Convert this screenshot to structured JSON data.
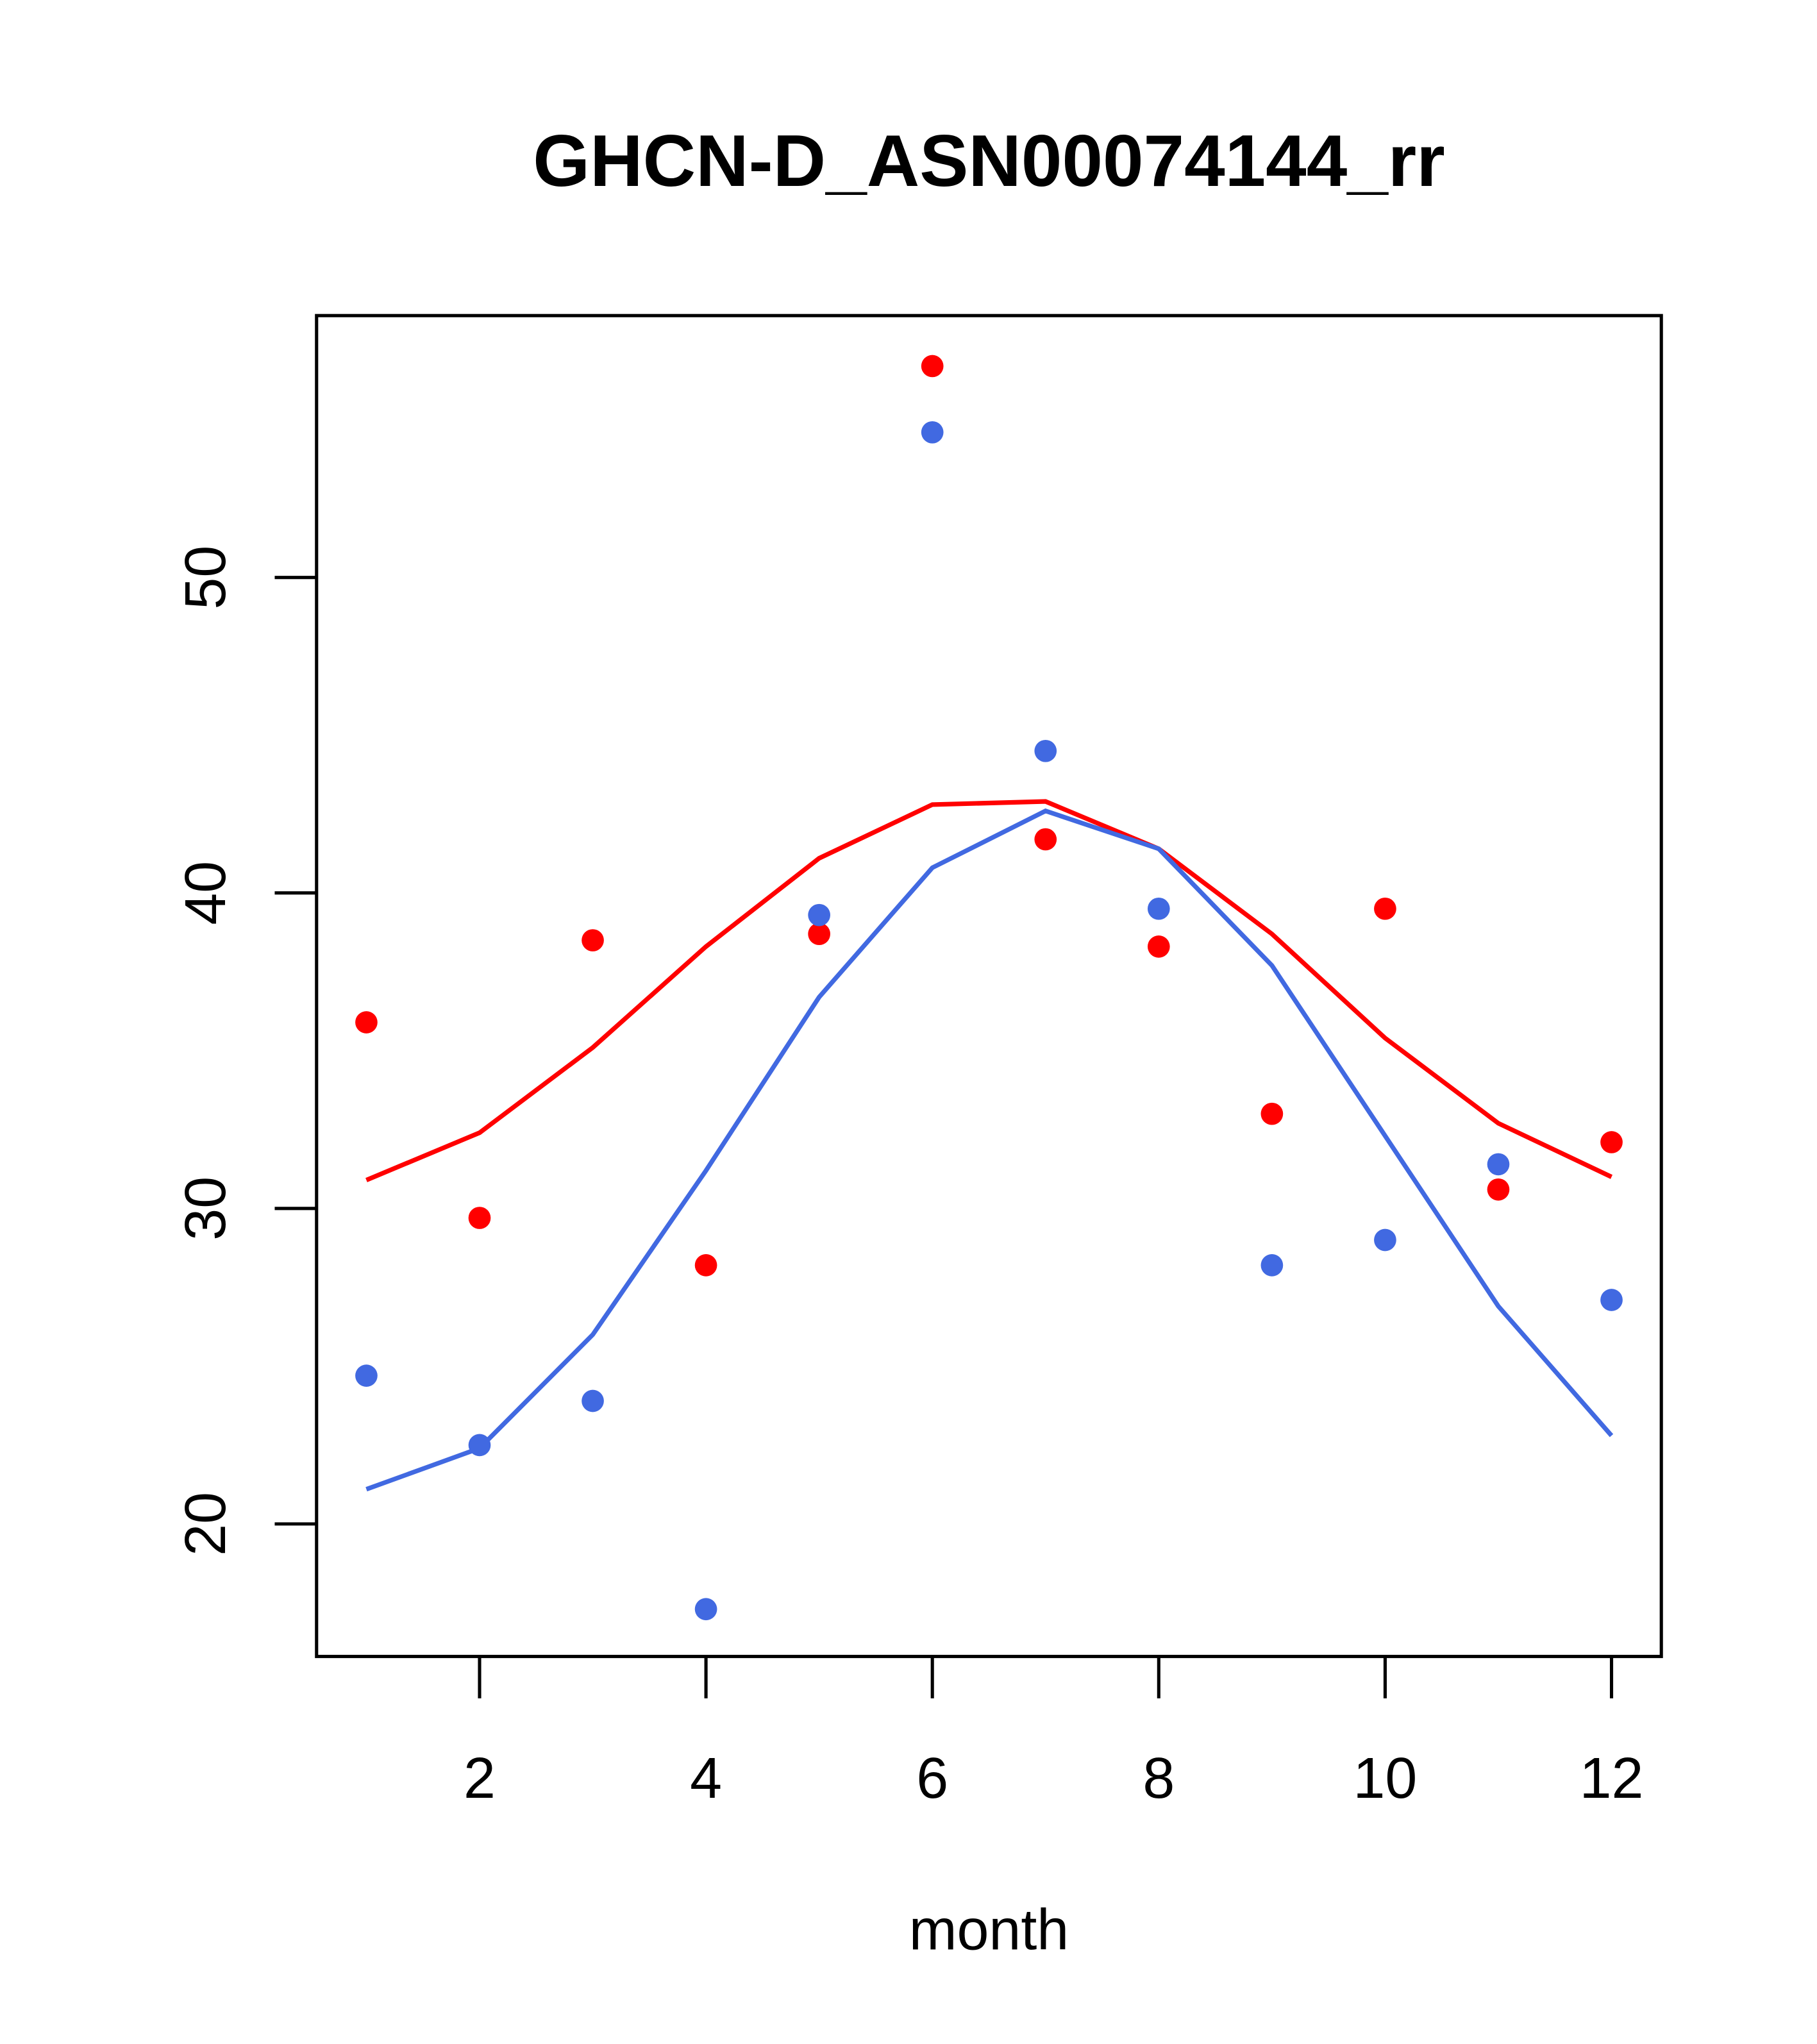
{
  "chart_data": {
    "type": "scatter",
    "title": "GHCN-D_ASN00074144_rr",
    "xlabel": "month",
    "ylabel": "",
    "xlim": [
      0.56,
      12.44
    ],
    "ylim": [
      15.8,
      58.3
    ],
    "xticks": [
      2,
      4,
      6,
      8,
      10,
      12
    ],
    "yticks": [
      20,
      30,
      40,
      50
    ],
    "x": [
      1,
      2,
      3,
      4,
      5,
      6,
      7,
      8,
      9,
      10,
      11,
      12
    ],
    "series": [
      {
        "name": "red points",
        "kind": "points",
        "color": "#ff0000",
        "values": [
          35.9,
          29.7,
          38.5,
          28.2,
          38.7,
          56.7,
          41.7,
          38.3,
          33.0,
          39.5,
          30.6,
          32.1
        ]
      },
      {
        "name": "blue points",
        "kind": "points",
        "color": "#4169e1",
        "values": [
          24.7,
          22.5,
          23.9,
          17.3,
          39.3,
          54.6,
          44.5,
          39.5,
          28.2,
          29.0,
          31.4,
          27.1
        ]
      },
      {
        "name": "red line",
        "kind": "line",
        "color": "#ff0000",
        "values": [
          30.9,
          32.4,
          35.1,
          38.3,
          41.1,
          42.8,
          42.9,
          41.4,
          38.7,
          35.4,
          32.7,
          31.0
        ]
      },
      {
        "name": "blue line",
        "kind": "line",
        "color": "#4169e1",
        "values": [
          21.1,
          22.4,
          26.0,
          31.2,
          36.7,
          40.8,
          42.6,
          41.4,
          37.7,
          32.3,
          26.9,
          22.8
        ]
      }
    ]
  }
}
